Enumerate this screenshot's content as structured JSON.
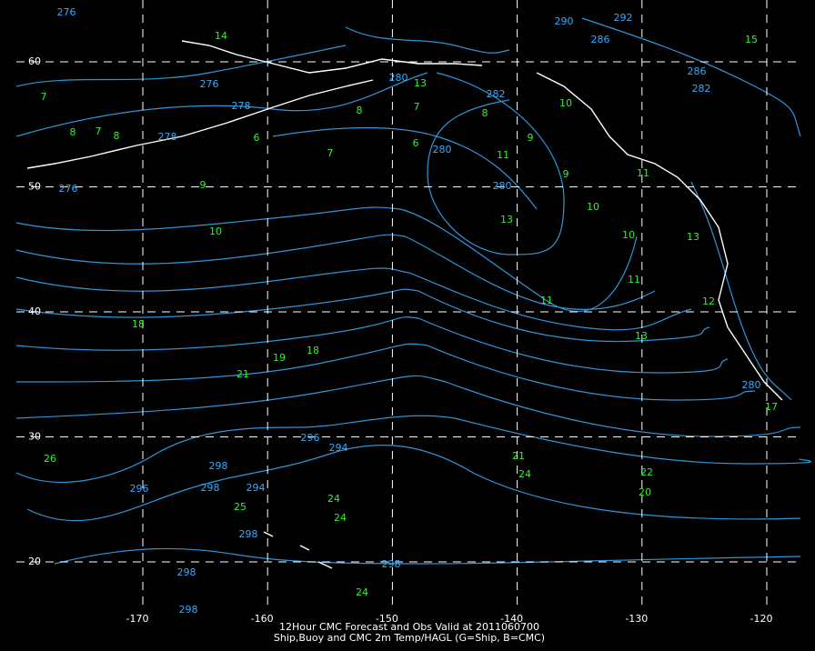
{
  "latitudes": [
    60,
    50,
    40,
    30,
    20
  ],
  "longitudes": [
    -170,
    -160,
    -150,
    -140,
    -130,
    -120
  ],
  "ship_obs": [
    "7",
    "8",
    "7",
    "8",
    "6",
    "8",
    "7",
    "6",
    "7",
    "8",
    "9",
    "11",
    "9",
    "9",
    "10",
    "13",
    "10",
    "10",
    "11",
    "11",
    "18",
    "18",
    "19",
    "21",
    "13",
    "26",
    "21",
    "24",
    "22",
    "20",
    "25",
    "24",
    "24",
    "24",
    "13",
    "10",
    "11",
    "13",
    "12",
    "17",
    "15",
    "14"
  ],
  "cmc_labels": [
    "276",
    "276",
    "278",
    "278",
    "276",
    "280",
    "282",
    "280",
    "280",
    "296",
    "298",
    "298",
    "294",
    "296",
    "294",
    "298",
    "298",
    "298",
    "298",
    "286",
    "292",
    "290",
    "286",
    "282",
    "280"
  ],
  "caption": [
    "12Hour CMC Forecast and Obs Valid at 2011060700",
    "Ship,Buoy and CMC 2m Temp/HAGL (G=Ship, B=CMC)"
  ]
}
